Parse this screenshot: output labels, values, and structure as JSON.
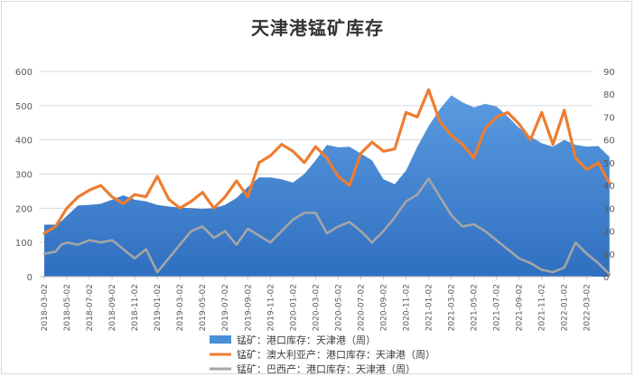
{
  "chart_data": {
    "type": "area",
    "title": "天津港锰矿库存",
    "grid": true,
    "legend_position": "bottom",
    "y_left": {
      "range": [
        0,
        600
      ],
      "ticks": [
        "0",
        "100",
        "200",
        "300",
        "400",
        "500",
        "600"
      ]
    },
    "y_right": {
      "range": [
        0,
        90
      ],
      "ticks": [
        "0",
        "10",
        "20",
        "30",
        "40",
        "50",
        "60",
        "70",
        "80",
        "90"
      ]
    },
    "x_tick_labels": [
      "2018-03-02",
      "2018-05-02",
      "2018-07-02",
      "2018-09-02",
      "2018-11-02",
      "2019-01-02",
      "2019-03-02",
      "2019-05-02",
      "2019-07-02",
      "2019-09-02",
      "2019-11-02",
      "2020-01-02",
      "2020-03-02",
      "2020-05-02",
      "2020-07-02",
      "2020-09-02",
      "2020-11-02",
      "2021-01-02",
      "2021-03-02",
      "2021-05-02",
      "2021-07-02",
      "2021-09-02",
      "2021-11-02",
      "2022-01-02",
      "2022-03-02"
    ],
    "series": [
      {
        "name": "锰矿：港口库存：天津港（周）",
        "kind": "area",
        "axis": "left",
        "color": "#4a8fd8",
        "values": [
          [
            0,
            152
          ],
          [
            1,
            152
          ],
          [
            1.5,
            162
          ],
          [
            2,
            178
          ],
          [
            3,
            208
          ],
          [
            4,
            210
          ],
          [
            5,
            213
          ],
          [
            6,
            225
          ],
          [
            7,
            238
          ],
          [
            8,
            225
          ],
          [
            9,
            220
          ],
          [
            10,
            210
          ],
          [
            11,
            205
          ],
          [
            12,
            202
          ],
          [
            13,
            200
          ],
          [
            14,
            198
          ],
          [
            15,
            200
          ],
          [
            16,
            210
          ],
          [
            17,
            230
          ],
          [
            18,
            262
          ],
          [
            19,
            290
          ],
          [
            20,
            290
          ],
          [
            21,
            285
          ],
          [
            22,
            275
          ],
          [
            23,
            300
          ],
          [
            24,
            340
          ],
          [
            25,
            385
          ],
          [
            26,
            378
          ],
          [
            27,
            380
          ],
          [
            28,
            360
          ],
          [
            29,
            340
          ],
          [
            30,
            285
          ],
          [
            31,
            270
          ],
          [
            32,
            310
          ],
          [
            33,
            380
          ],
          [
            34,
            440
          ],
          [
            35,
            490
          ],
          [
            36,
            530
          ],
          [
            37,
            510
          ],
          [
            38,
            495
          ],
          [
            39,
            505
          ],
          [
            40,
            498
          ],
          [
            41,
            468
          ],
          [
            42,
            435
          ],
          [
            43,
            410
          ],
          [
            44,
            390
          ],
          [
            45,
            380
          ],
          [
            46,
            400
          ],
          [
            47,
            385
          ],
          [
            48,
            380
          ],
          [
            49,
            382
          ],
          [
            50,
            350
          ]
        ]
      },
      {
        "name": "锰矿：澳大利亚产：港口库存：天津港（周）",
        "kind": "line",
        "axis": "right",
        "color": "#ed7d31",
        "values": [
          [
            0,
            19
          ],
          [
            1,
            22
          ],
          [
            1.5,
            26
          ],
          [
            2,
            30
          ],
          [
            3,
            35
          ],
          [
            4,
            38
          ],
          [
            5,
            40
          ],
          [
            6,
            35
          ],
          [
            7,
            32
          ],
          [
            8,
            36
          ],
          [
            9,
            35
          ],
          [
            10,
            44
          ],
          [
            11,
            34
          ],
          [
            12,
            30
          ],
          [
            13,
            33
          ],
          [
            14,
            37
          ],
          [
            15,
            30
          ],
          [
            16,
            35
          ],
          [
            17,
            42
          ],
          [
            18,
            35
          ],
          [
            19,
            50
          ],
          [
            20,
            53
          ],
          [
            21,
            58
          ],
          [
            22,
            55
          ],
          [
            23,
            50
          ],
          [
            24,
            57
          ],
          [
            25,
            52
          ],
          [
            26,
            44
          ],
          [
            27,
            40
          ],
          [
            28,
            54
          ],
          [
            29,
            59
          ],
          [
            30,
            55
          ],
          [
            31,
            56
          ],
          [
            32,
            72
          ],
          [
            33,
            70
          ],
          [
            34,
            82
          ],
          [
            35,
            68
          ],
          [
            36,
            62
          ],
          [
            37,
            58
          ],
          [
            38,
            52
          ],
          [
            39,
            65
          ],
          [
            40,
            70
          ],
          [
            41,
            72
          ],
          [
            42,
            67
          ],
          [
            43,
            60
          ],
          [
            44,
            72
          ],
          [
            45,
            58
          ],
          [
            46,
            73
          ],
          [
            47,
            52
          ],
          [
            48,
            47
          ],
          [
            49,
            50
          ],
          [
            50,
            41
          ]
        ]
      },
      {
        "name": "锰矿：巴西产：港口库存：天津港（周）",
        "kind": "line",
        "axis": "right",
        "color": "#a5a5a5",
        "values": [
          [
            0,
            10
          ],
          [
            1,
            11
          ],
          [
            1.5,
            14
          ],
          [
            2,
            15
          ],
          [
            3,
            14
          ],
          [
            4,
            16
          ],
          [
            5,
            15
          ],
          [
            6,
            16
          ],
          [
            7,
            12
          ],
          [
            8,
            8
          ],
          [
            9,
            12
          ],
          [
            10,
            2
          ],
          [
            11,
            8
          ],
          [
            12,
            14
          ],
          [
            13,
            20
          ],
          [
            14,
            22
          ],
          [
            15,
            17
          ],
          [
            16,
            20
          ],
          [
            17,
            14
          ],
          [
            18,
            21
          ],
          [
            19,
            18
          ],
          [
            20,
            15
          ],
          [
            21,
            20
          ],
          [
            22,
            25
          ],
          [
            23,
            28
          ],
          [
            24,
            28
          ],
          [
            25,
            19
          ],
          [
            26,
            22
          ],
          [
            27,
            24
          ],
          [
            28,
            20
          ],
          [
            29,
            15
          ],
          [
            30,
            20
          ],
          [
            31,
            26
          ],
          [
            32,
            33
          ],
          [
            33,
            36
          ],
          [
            34,
            43
          ],
          [
            35,
            35
          ],
          [
            36,
            27
          ],
          [
            37,
            22
          ],
          [
            38,
            23
          ],
          [
            39,
            20
          ],
          [
            40,
            16
          ],
          [
            41,
            12
          ],
          [
            42,
            8
          ],
          [
            43,
            6
          ],
          [
            44,
            3
          ],
          [
            45,
            2
          ],
          [
            46,
            4
          ],
          [
            47,
            15
          ],
          [
            48,
            10
          ],
          [
            49,
            6
          ],
          [
            50,
            1
          ]
        ]
      }
    ]
  }
}
